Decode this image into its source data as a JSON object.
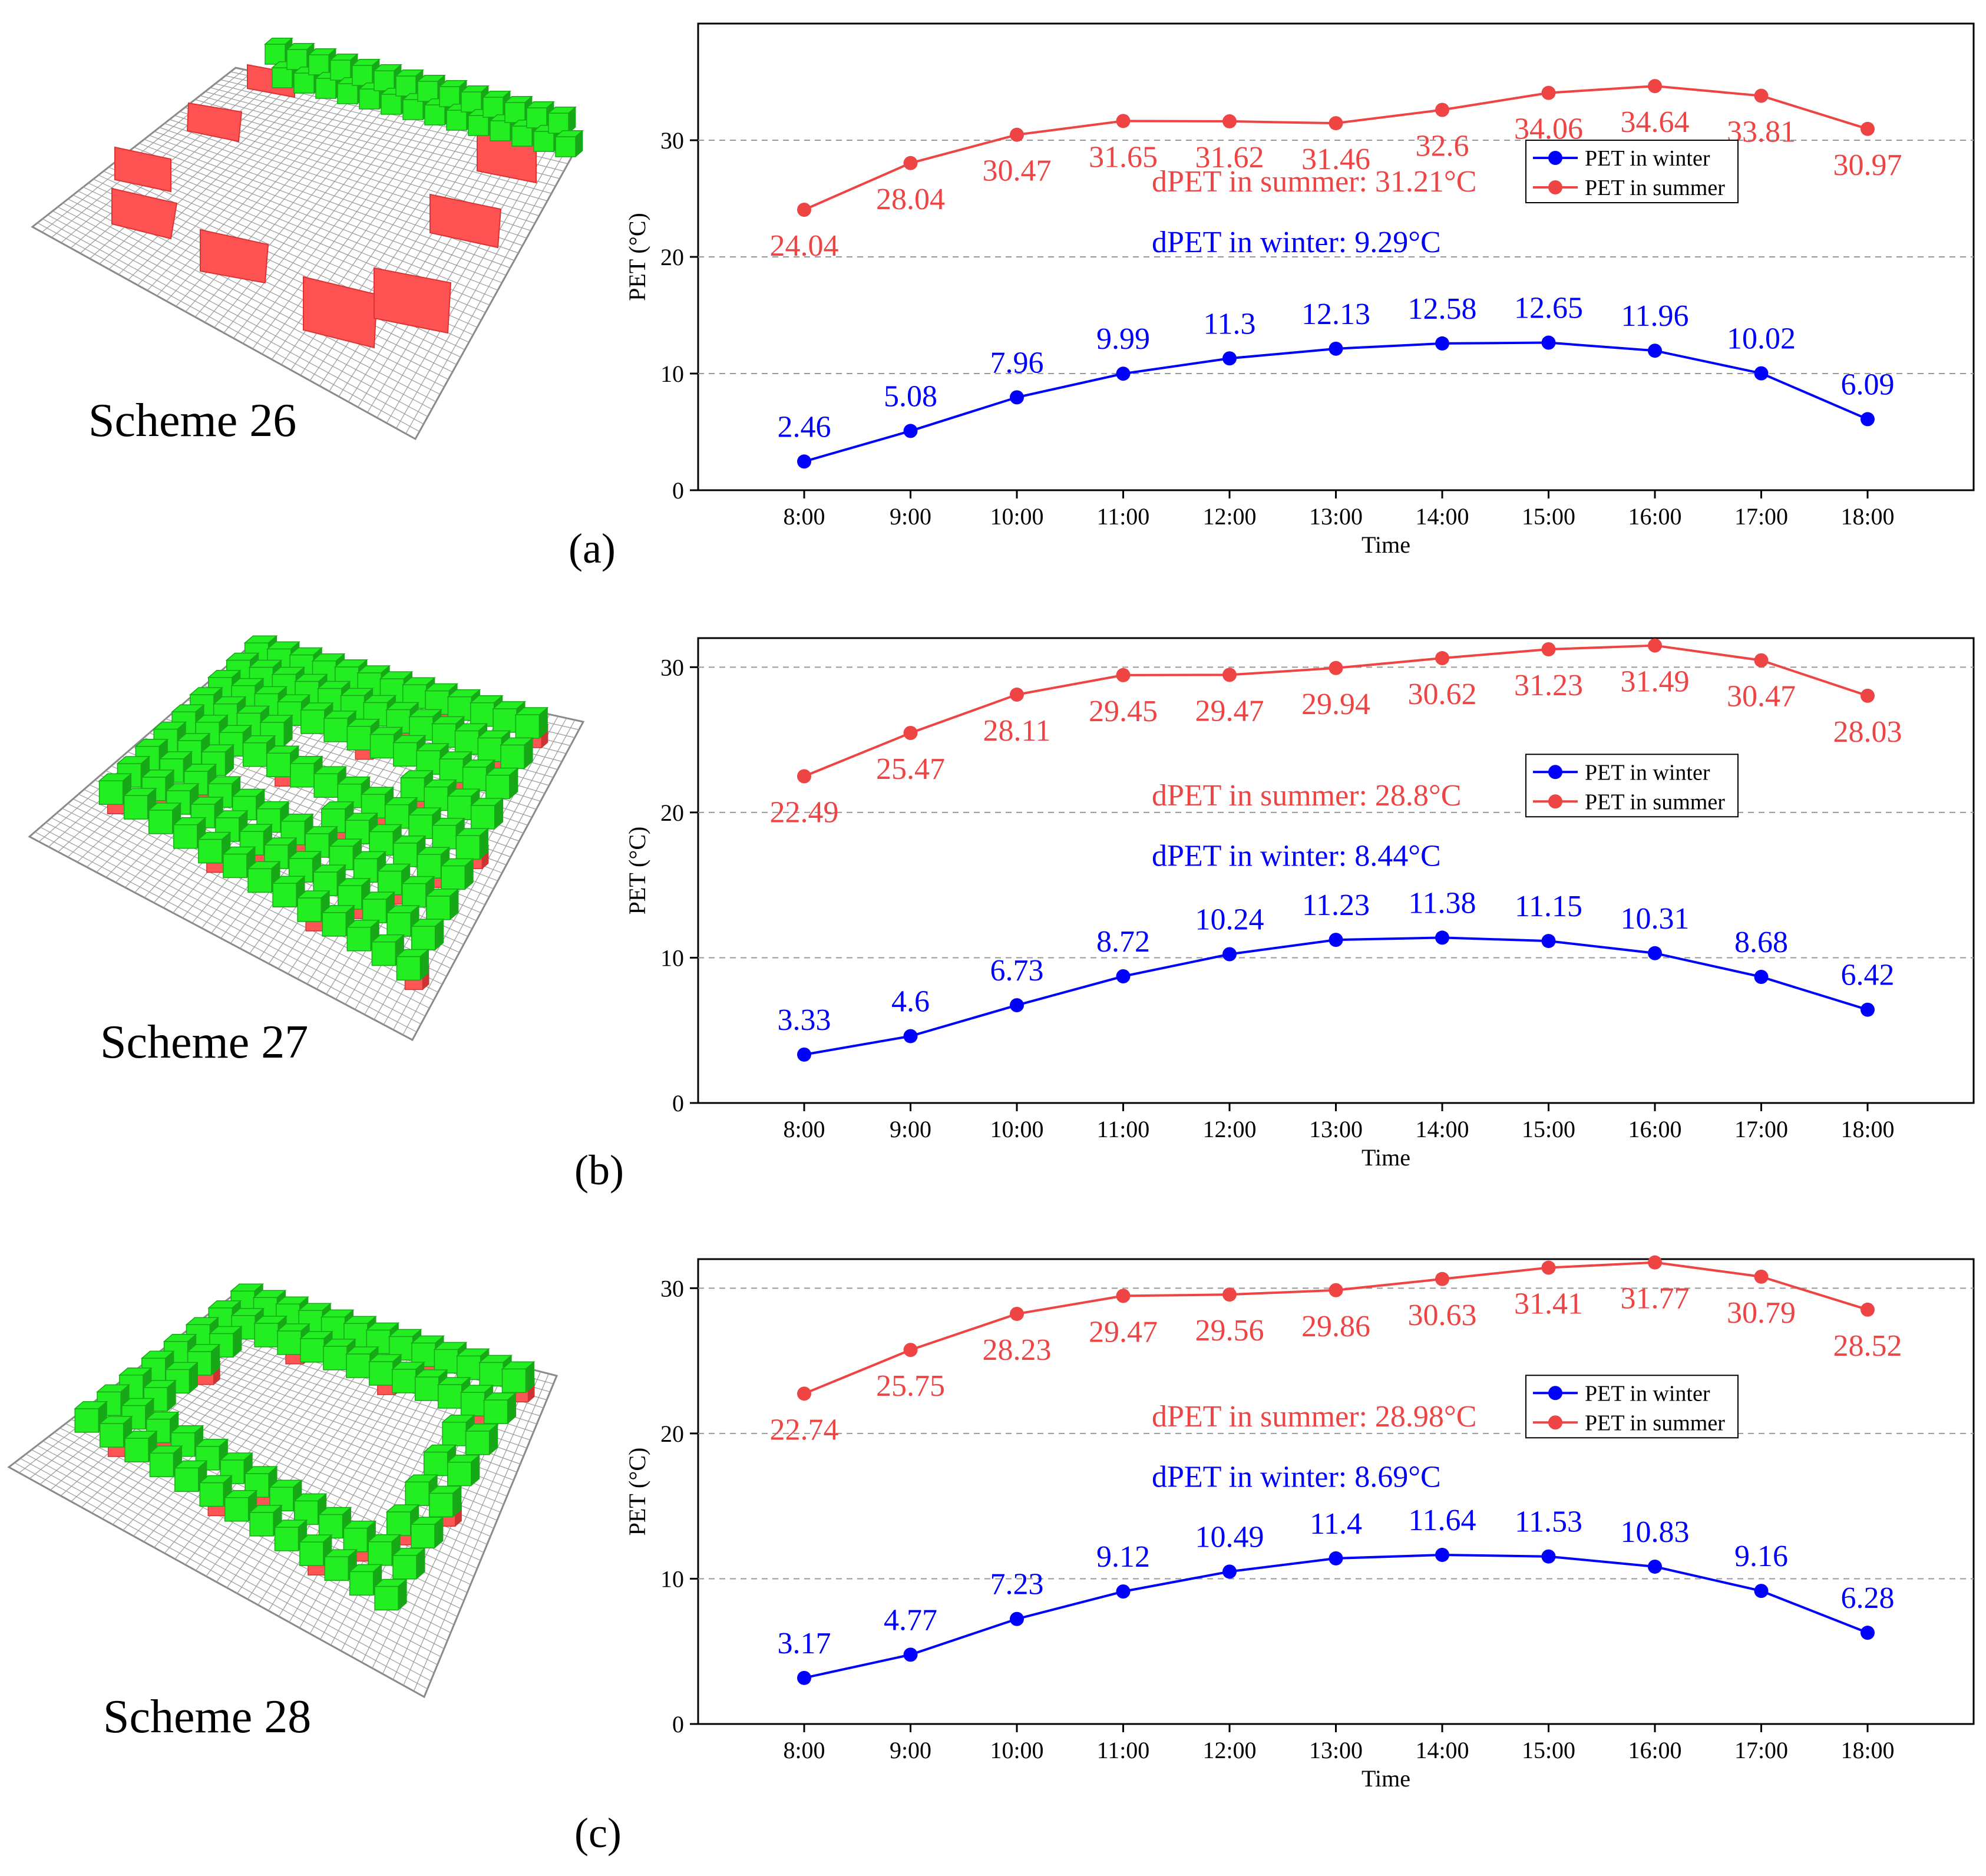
{
  "colors": {
    "winter": "#0000ff",
    "summer": "#ee4444",
    "green_block": "#22ee22",
    "red_block": "#ff5555",
    "grid": "#9a9a9a"
  },
  "schemes": [
    {
      "label": "Scheme 26",
      "panel": "(a)"
    },
    {
      "label": "Scheme 27",
      "panel": "(b)"
    },
    {
      "label": "Scheme 28",
      "panel": "(c)"
    }
  ],
  "chart_data": [
    {
      "type": "line",
      "title": "",
      "xlabel": "Time",
      "ylabel": "PET (°C)",
      "ylim": [
        0,
        40
      ],
      "yticks": [
        "0",
        "10",
        "20",
        "30"
      ],
      "categories": [
        "8:00",
        "9:00",
        "10:00",
        "11:00",
        "12:00",
        "13:00",
        "14:00",
        "15:00",
        "16:00",
        "17:00",
        "18:00"
      ],
      "series": [
        {
          "name": "PET in winter",
          "values": [
            2.46,
            5.08,
            7.96,
            9.99,
            11.3,
            12.13,
            12.58,
            12.65,
            11.96,
            10.02,
            6.09
          ]
        },
        {
          "name": "PET in summer",
          "values": [
            24.04,
            28.04,
            30.47,
            31.65,
            31.62,
            31.46,
            32.6,
            34.06,
            34.64,
            33.81,
            30.97
          ]
        }
      ],
      "annotations": {
        "summer": "dPET in summer: 31.21°C",
        "winter": "dPET in winter: 9.29°C"
      },
      "legend_position": "right-middle"
    },
    {
      "type": "line",
      "title": "",
      "xlabel": "Time",
      "ylabel": "PET (°C)",
      "ylim": [
        0,
        32
      ],
      "yticks": [
        "0",
        "10",
        "20",
        "30"
      ],
      "categories": [
        "8:00",
        "9:00",
        "10:00",
        "11:00",
        "12:00",
        "13:00",
        "14:00",
        "15:00",
        "16:00",
        "17:00",
        "18:00"
      ],
      "series": [
        {
          "name": "PET in winter",
          "values": [
            3.33,
            4.6,
            6.73,
            8.72,
            10.24,
            11.23,
            11.38,
            11.15,
            10.31,
            8.68,
            6.42
          ]
        },
        {
          "name": "PET in summer",
          "values": [
            22.49,
            25.47,
            28.11,
            29.45,
            29.47,
            29.94,
            30.62,
            31.23,
            31.49,
            30.47,
            28.03
          ]
        }
      ],
      "annotations": {
        "summer": "dPET in summer: 28.8°C",
        "winter": "dPET in winter: 8.44°C"
      },
      "legend_position": "right-middle"
    },
    {
      "type": "line",
      "title": "",
      "xlabel": "Time",
      "ylabel": "PET (°C)",
      "ylim": [
        0,
        32
      ],
      "yticks": [
        "0",
        "10",
        "20",
        "30"
      ],
      "categories": [
        "8:00",
        "9:00",
        "10:00",
        "11:00",
        "12:00",
        "13:00",
        "14:00",
        "15:00",
        "16:00",
        "17:00",
        "18:00"
      ],
      "series": [
        {
          "name": "PET in winter",
          "values": [
            3.17,
            4.77,
            7.23,
            9.12,
            10.49,
            11.4,
            11.64,
            11.53,
            10.83,
            9.16,
            6.28
          ]
        },
        {
          "name": "PET in summer",
          "values": [
            22.74,
            25.75,
            28.23,
            29.47,
            29.56,
            29.86,
            30.63,
            31.41,
            31.77,
            30.79,
            28.52
          ]
        }
      ],
      "annotations": {
        "summer": "dPET in summer: 28.98°C",
        "winter": "dPET in winter: 8.69°C"
      },
      "legend_position": "right-middle"
    }
  ]
}
